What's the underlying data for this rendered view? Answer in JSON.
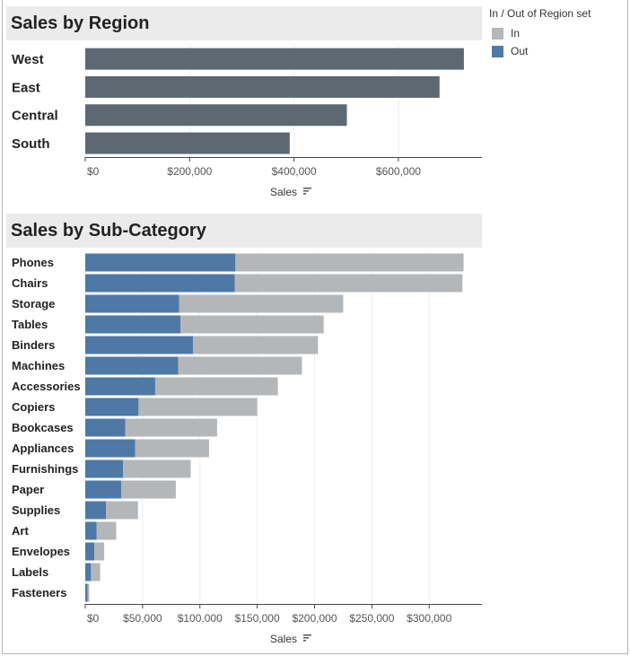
{
  "legend": {
    "title": "In / Out of Region set",
    "items": [
      {
        "label": "In",
        "color": "#b4b7b9"
      },
      {
        "label": "Out",
        "color": "#4e79a7"
      }
    ]
  },
  "chart_data": [
    {
      "type": "bar",
      "title": "Sales by Region",
      "xlabel": "Sales",
      "categories": [
        "West",
        "East",
        "Central",
        "South"
      ],
      "values": [
        725458,
        678781,
        501240,
        391722
      ],
      "bar_color": "#5e6872",
      "xlim": [
        0,
        760000
      ],
      "ticks": [
        0,
        200000,
        400000,
        600000
      ],
      "tick_labels": [
        "$0",
        "$200,000",
        "$400,000",
        "$600,000"
      ],
      "grid": true
    },
    {
      "type": "bar",
      "stacked": true,
      "title": "Sales by Sub-Category",
      "xlabel": "Sales",
      "categories": [
        "Phones",
        "Chairs",
        "Storage",
        "Tables",
        "Binders",
        "Machines",
        "Accessories",
        "Copiers",
        "Bookcases",
        "Appliances",
        "Furnishings",
        "Paper",
        "Supplies",
        "Art",
        "Envelopes",
        "Labels",
        "Fasteners"
      ],
      "series": [
        {
          "name": "Out",
          "values": [
            131000,
            130500,
            82000,
            83000,
            94000,
            81000,
            61000,
            46500,
            35000,
            43500,
            33000,
            31500,
            18000,
            10000,
            8000,
            5000,
            2000
          ]
        },
        {
          "name": "In",
          "values": [
            199000,
            198500,
            143000,
            125000,
            109000,
            108000,
            107000,
            103500,
            80000,
            64500,
            59000,
            47500,
            28000,
            17000,
            8500,
            8000,
            1500
          ]
        }
      ],
      "xlim": [
        0,
        346000
      ],
      "ticks": [
        0,
        50000,
        100000,
        150000,
        200000,
        250000,
        300000
      ],
      "tick_labels": [
        "$0",
        "$50,000",
        "$100,000",
        "$150,000",
        "$200,000",
        "$250,000",
        "$300,000"
      ],
      "grid": true
    }
  ]
}
